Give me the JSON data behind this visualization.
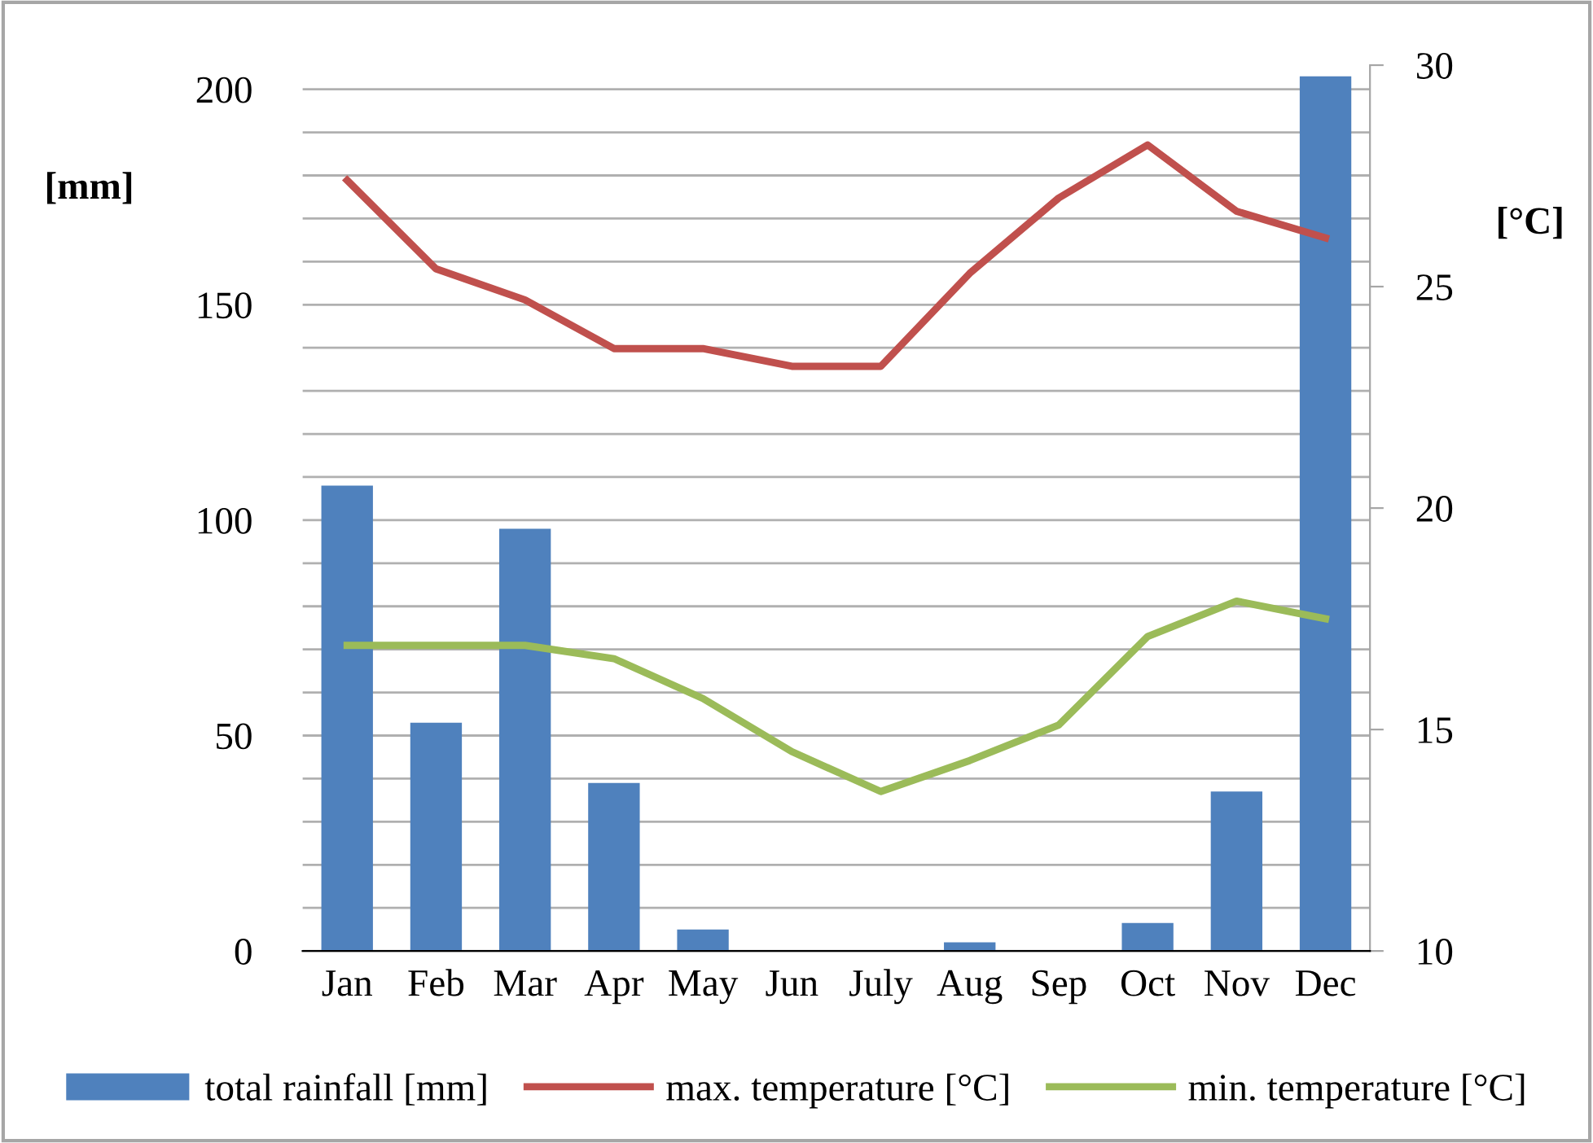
{
  "chart_data": {
    "type": "bar",
    "categories": [
      "Jan",
      "Feb",
      "Mar",
      "Apr",
      "May",
      "Jun",
      "July",
      "Aug",
      "Sep",
      "Oct",
      "Nov",
      "Dec"
    ],
    "ylabel": "[mm]",
    "y2label": "[°C]",
    "series": [
      {
        "name": "total rainfall [mm]",
        "color": "#4f81bd",
        "values": [
          108,
          53,
          98,
          39,
          5,
          0,
          0,
          2,
          0,
          6.5,
          37,
          203
        ]
      },
      {
        "name": "max. temperature [°C]",
        "type": "line",
        "axis": "y2",
        "color": "#c0504d",
        "values": [
          27.4,
          25.4,
          24.7,
          23.6,
          23.6,
          23.2,
          23.2,
          25.3,
          27.0,
          28.2,
          26.7,
          26.1
        ]
      },
      {
        "name": "min. temperature [°C]",
        "type": "line",
        "axis": "y2",
        "color": "#9bbb59",
        "values": [
          16.9,
          16.9,
          16.9,
          16.6,
          15.7,
          14.5,
          13.6,
          14.3,
          15.1,
          17.1,
          17.9,
          17.5
        ]
      }
    ],
    "ylim": [
      0,
      205.6
    ],
    "yticks": [
      0,
      {
        "value": 10,
        "label": null
      },
      {
        "value": 20,
        "label": null
      },
      {
        "value": 30,
        "label": null
      },
      {
        "value": 40,
        "label": null
      },
      50,
      {
        "value": 60,
        "label": null
      },
      {
        "value": 70,
        "label": null
      },
      {
        "value": 80,
        "label": null
      },
      {
        "value": 90,
        "label": null
      },
      100,
      {
        "value": 110,
        "label": null
      },
      {
        "value": 120,
        "label": null
      },
      {
        "value": 130,
        "label": null
      },
      {
        "value": 140,
        "label": null
      },
      150,
      {
        "value": 160,
        "label": null
      },
      {
        "value": 170,
        "label": null
      },
      {
        "value": 180,
        "label": null
      },
      {
        "value": 190,
        "label": null
      },
      200
    ],
    "y2lim": [
      10,
      30
    ],
    "y2ticks": [
      10,
      15,
      20,
      25,
      30
    ],
    "grid": "y",
    "legend": "bottom",
    "marker": "none",
    "line_style": "solid"
  }
}
